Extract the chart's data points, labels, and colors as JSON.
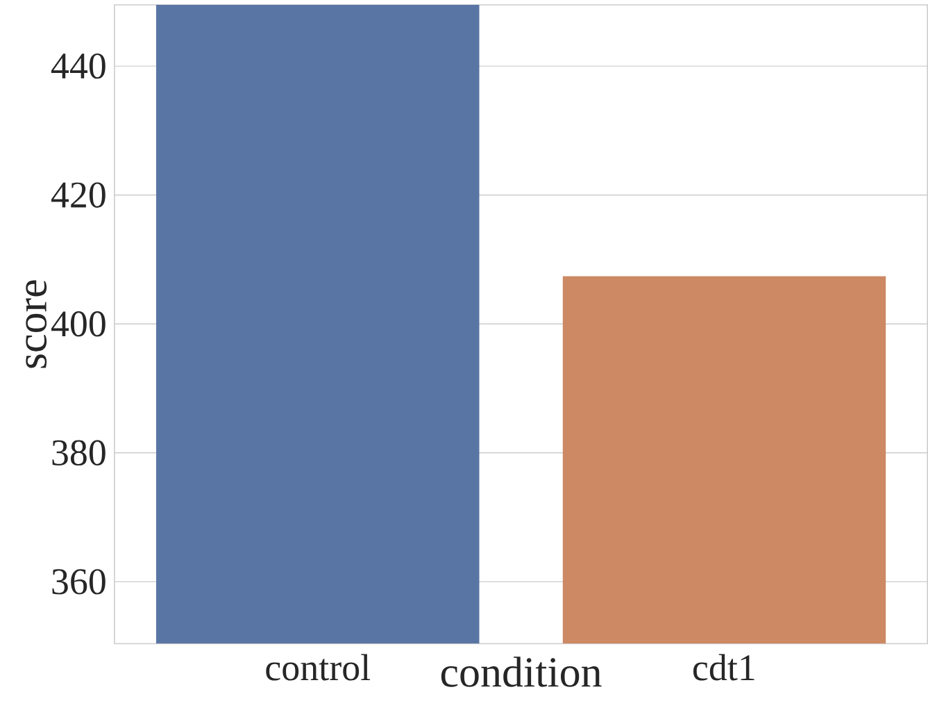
{
  "chart_data": {
    "type": "bar",
    "xlabel": "condition",
    "ylabel": "score",
    "categories": [
      "control",
      "cdt1"
    ],
    "values": [
      449.5,
      407.4
    ],
    "colors": [
      "#5975a4",
      "#cc8963"
    ],
    "ylim": [
      350.4,
      449.5
    ],
    "yticks": [
      360,
      380,
      400,
      420,
      440
    ],
    "grid": "y"
  }
}
